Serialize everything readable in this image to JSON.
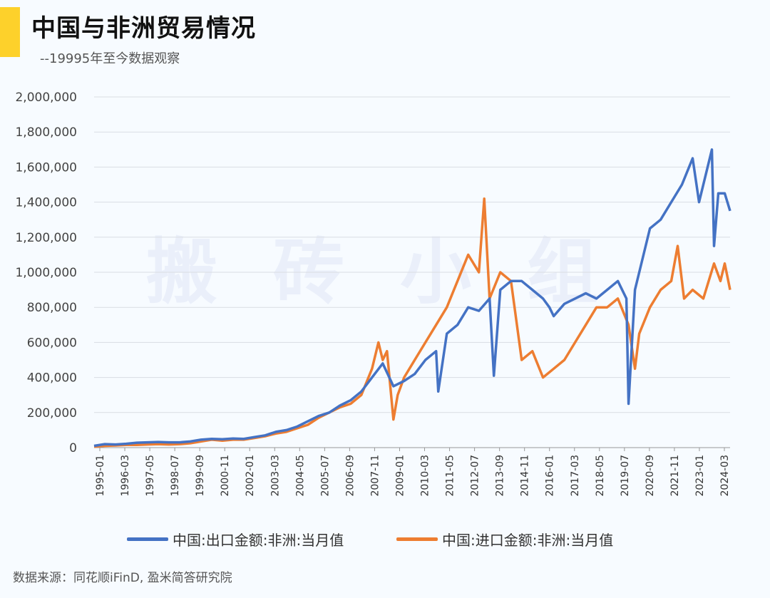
{
  "header": {
    "title": "中国与非洲贸易情况",
    "subtitle": "--19995年至今数据观察"
  },
  "watermark": "搬砖小组",
  "source": "数据来源：同花顺iFinD, 盈米简答研究院",
  "colors": {
    "accent": "#fdd12b",
    "export": "#4472c4",
    "import": "#ed7d31",
    "grid": "#d9dde3"
  },
  "chart_data": {
    "type": "line",
    "title": "中国与非洲贸易情况",
    "xlabel": "",
    "ylabel": "",
    "ylim": [
      0,
      2000000
    ],
    "y_ticks": [
      "2,000,000",
      "1,800,000",
      "1,600,000",
      "1,400,000",
      "1,200,000",
      "1,000,000",
      "800,000",
      "600,000",
      "400,000",
      "200,000",
      "0"
    ],
    "y_tick_values": [
      2000000,
      1800000,
      1600000,
      1400000,
      1200000,
      1000000,
      800000,
      600000,
      400000,
      200000,
      0
    ],
    "x_tick_labels": [
      "1995-01",
      "1996-03",
      "1997-05",
      "1998-07",
      "1999-09",
      "2000-11",
      "2002-01",
      "2003-03",
      "2004-05",
      "2005-07",
      "2006-09",
      "2007-11",
      "2009-01",
      "2010-03",
      "2011-05",
      "2012-07",
      "2013-09",
      "2014-11",
      "2016-01",
      "2017-03",
      "2018-05",
      "2019-07",
      "2020-09",
      "2021-11",
      "2023-01",
      "2024-03"
    ],
    "x_range": [
      1995.0,
      2024.75
    ],
    "grid": true,
    "legend_position": "bottom",
    "series": [
      {
        "name": "中国:出口金额:非洲:当月值",
        "color": "#4472c4",
        "x": [
          1995.0,
          1995.5,
          1996.0,
          1996.5,
          1997.0,
          1997.5,
          1998.0,
          1998.5,
          1999.0,
          1999.5,
          2000.0,
          2000.5,
          2001.0,
          2001.5,
          2002.0,
          2002.5,
          2003.0,
          2003.5,
          2004.0,
          2004.5,
          2005.0,
          2005.5,
          2006.0,
          2006.5,
          2007.0,
          2007.5,
          2008.0,
          2008.5,
          2009.0,
          2009.5,
          2010.0,
          2010.5,
          2011.0,
          2011.1,
          2011.5,
          2012.0,
          2012.5,
          2013.0,
          2013.5,
          2013.7,
          2014.0,
          2014.5,
          2015.0,
          2015.5,
          2016.0,
          2016.3,
          2016.5,
          2017.0,
          2017.5,
          2018.0,
          2018.5,
          2019.0,
          2019.5,
          2019.9,
          2020.0,
          2020.3,
          2020.5,
          2021.0,
          2021.5,
          2022.0,
          2022.5,
          2023.0,
          2023.3,
          2023.6,
          2023.9,
          2024.0,
          2024.2,
          2024.5,
          2024.75
        ],
        "values": [
          10000,
          20000,
          18000,
          22000,
          28000,
          30000,
          32000,
          30000,
          30000,
          35000,
          45000,
          50000,
          48000,
          52000,
          50000,
          60000,
          70000,
          90000,
          100000,
          120000,
          150000,
          180000,
          200000,
          240000,
          270000,
          320000,
          400000,
          480000,
          350000,
          380000,
          420000,
          500000,
          550000,
          320000,
          650000,
          700000,
          800000,
          780000,
          850000,
          410000,
          900000,
          950000,
          950000,
          900000,
          850000,
          800000,
          750000,
          820000,
          850000,
          880000,
          850000,
          900000,
          950000,
          850000,
          250000,
          900000,
          1000000,
          1250000,
          1300000,
          1400000,
          1500000,
          1650000,
          1400000,
          1550000,
          1700000,
          1150000,
          1450000,
          1450000,
          1350000
        ]
      },
      {
        "name": "中国:进口金额:非洲:当月值",
        "color": "#ed7d31",
        "x": [
          1995.0,
          1995.5,
          1996.0,
          1996.5,
          1997.0,
          1997.5,
          1998.0,
          1998.5,
          1999.0,
          1999.5,
          2000.0,
          2000.5,
          2001.0,
          2001.5,
          2002.0,
          2002.5,
          2003.0,
          2003.5,
          2004.0,
          2004.5,
          2005.0,
          2005.5,
          2006.0,
          2006.5,
          2007.0,
          2007.5,
          2008.0,
          2008.3,
          2008.5,
          2008.7,
          2009.0,
          2009.2,
          2009.5,
          2010.0,
          2010.5,
          2011.0,
          2011.5,
          2012.0,
          2012.5,
          2013.0,
          2013.25,
          2013.5,
          2014.0,
          2014.5,
          2015.0,
          2015.5,
          2016.0,
          2016.5,
          2017.0,
          2017.5,
          2018.0,
          2018.5,
          2019.0,
          2019.5,
          2020.0,
          2020.3,
          2020.5,
          2021.0,
          2021.5,
          2022.0,
          2022.3,
          2022.6,
          2023.0,
          2023.5,
          2024.0,
          2024.3,
          2024.5,
          2024.75
        ],
        "values": [
          5000,
          10000,
          12000,
          15000,
          15000,
          18000,
          20000,
          18000,
          20000,
          25000,
          35000,
          45000,
          40000,
          45000,
          45000,
          55000,
          65000,
          80000,
          90000,
          110000,
          130000,
          170000,
          200000,
          230000,
          250000,
          300000,
          450000,
          600000,
          500000,
          550000,
          160000,
          300000,
          400000,
          500000,
          600000,
          700000,
          800000,
          950000,
          1100000,
          1000000,
          1420000,
          850000,
          1000000,
          950000,
          500000,
          550000,
          400000,
          450000,
          500000,
          600000,
          700000,
          800000,
          800000,
          850000,
          700000,
          450000,
          650000,
          800000,
          900000,
          950000,
          1150000,
          850000,
          900000,
          850000,
          1050000,
          950000,
          1050000,
          900000
        ]
      }
    ]
  }
}
